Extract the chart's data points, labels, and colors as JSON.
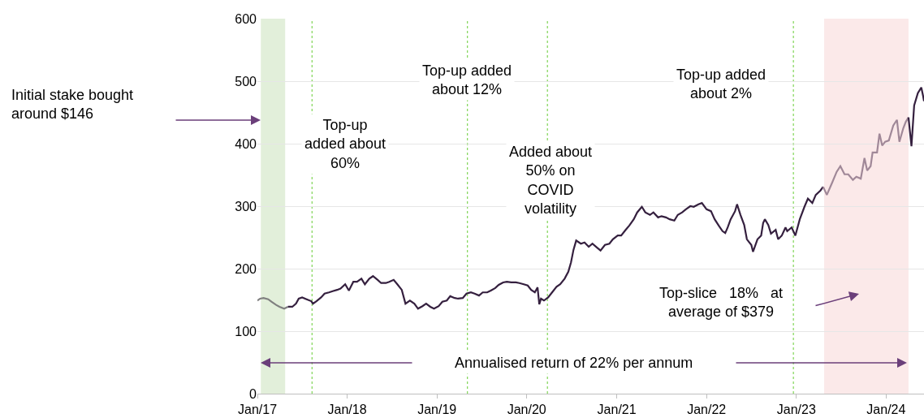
{
  "chart_data": {
    "type": "line",
    "xlim": [
      "2017-01-01",
      "2024-06-03"
    ],
    "ylim": [
      0,
      600
    ],
    "xticks": [
      {
        "value": "2017-01-01",
        "label": "Jan/17"
      },
      {
        "value": "2018-01-01",
        "label": "Jan/18"
      },
      {
        "value": "2019-01-01",
        "label": "Jan/19"
      },
      {
        "value": "2020-01-01",
        "label": "Jan/20"
      },
      {
        "value": "2021-01-01",
        "label": "Jan/21"
      },
      {
        "value": "2022-01-01",
        "label": "Jan/22"
      },
      {
        "value": "2023-01-01",
        "label": "Jan/23"
      },
      {
        "value": "2024-01-01",
        "label": "Jan/24"
      }
    ],
    "yticks": [
      0,
      100,
      200,
      300,
      400,
      500,
      600
    ],
    "grid": "y",
    "line_style": "solid",
    "marker": "none",
    "series": [
      {
        "color": "#808080",
        "x": [
          "2017-01-01",
          "2017-01-12",
          "2017-01-26",
          "2017-02-14",
          "2017-02-28",
          "2017-03-18",
          "2017-04-01",
          "2017-04-20",
          "2017-05-05"
        ],
        "values": [
          149,
          152,
          153,
          151,
          147,
          142,
          139,
          136,
          139
        ]
      },
      {
        "color": "#35203f",
        "x": [
          "2017-05-05",
          "2017-05-23",
          "2017-06-07",
          "2017-06-18",
          "2017-07-02",
          "2017-07-20",
          "2017-08-08",
          "2017-08-15",
          "2017-08-29",
          "2017-09-17",
          "2017-10-01",
          "2017-10-19",
          "2017-11-03",
          "2017-11-21",
          "2017-12-05",
          "2017-12-24",
          "2018-01-08",
          "2018-01-26",
          "2018-02-10",
          "2018-02-28",
          "2018-03-14",
          "2018-04-01",
          "2018-04-16",
          "2018-05-05",
          "2018-05-19",
          "2018-06-07",
          "2018-06-21",
          "2018-07-09",
          "2018-07-24",
          "2018-08-11",
          "2018-08-26",
          "2018-09-13",
          "2018-10-01",
          "2018-10-16",
          "2018-11-03",
          "2018-11-18",
          "2018-12-05",
          "2018-12-20",
          "2019-01-08",
          "2019-01-23",
          "2019-02-10",
          "2019-02-24",
          "2019-03-14",
          "2019-03-28",
          "2019-04-16",
          "2019-05-01",
          "2019-05-19",
          "2019-06-03",
          "2019-06-21",
          "2019-07-06",
          "2019-07-24",
          "2019-08-08",
          "2019-08-26",
          "2019-09-09",
          "2019-09-27",
          "2019-10-12",
          "2019-10-30",
          "2019-11-18",
          "2019-12-02",
          "2019-12-20",
          "2020-01-05",
          "2020-01-19",
          "2020-02-03",
          "2020-02-14",
          "2020-02-21",
          "2020-02-28",
          "2020-03-11",
          "2020-03-28",
          "2020-04-13",
          "2020-05-01",
          "2020-05-16",
          "2020-06-03",
          "2020-06-18",
          "2020-06-29",
          "2020-07-09",
          "2020-07-20",
          "2020-08-08",
          "2020-08-23",
          "2020-09-09",
          "2020-09-24",
          "2020-10-12",
          "2020-10-27",
          "2020-11-14",
          "2020-12-02",
          "2020-12-16",
          "2021-01-05",
          "2021-01-19",
          "2021-02-06",
          "2021-02-21",
          "2021-03-11",
          "2021-03-25",
          "2021-04-13",
          "2021-04-27",
          "2021-05-16",
          "2021-05-30",
          "2021-06-18",
          "2021-07-02",
          "2021-07-20",
          "2021-08-04",
          "2021-08-23",
          "2021-09-06",
          "2021-09-24",
          "2021-10-09",
          "2021-10-27",
          "2021-11-10",
          "2021-11-29",
          "2021-12-13",
          "2022-01-01",
          "2022-01-19",
          "2022-02-03",
          "2022-02-21",
          "2022-03-07",
          "2022-03-18",
          "2022-03-28",
          "2022-04-09",
          "2022-04-27",
          "2022-05-05",
          "2022-05-19",
          "2022-06-03",
          "2022-06-14",
          "2022-07-02",
          "2022-07-09",
          "2022-07-27",
          "2022-08-11",
          "2022-08-19",
          "2022-08-26",
          "2022-09-09",
          "2022-09-20",
          "2022-10-09",
          "2022-10-19",
          "2022-11-03",
          "2022-11-18",
          "2022-11-25",
          "2022-12-13",
          "2022-12-28",
          "2023-01-15",
          "2023-02-03",
          "2023-02-17",
          "2023-03-07",
          "2023-03-21",
          "2023-04-09",
          "2023-04-20"
        ],
        "values": [
          139,
          139,
          144,
          152,
          154,
          151,
          148,
          144,
          148,
          154,
          160,
          162,
          164,
          166,
          168,
          175,
          165,
          179,
          179,
          184,
          175,
          184,
          188,
          182,
          177,
          177,
          179,
          182,
          175,
          166,
          144,
          149,
          144,
          136,
          140,
          144,
          139,
          136,
          140,
          147,
          149,
          156,
          153,
          152,
          153,
          160,
          162,
          160,
          157,
          162,
          162,
          165,
          169,
          174,
          178,
          179,
          178,
          178,
          177,
          175,
          173,
          166,
          162,
          170,
          143,
          152,
          149,
          154,
          162,
          171,
          175,
          184,
          195,
          210,
          230,
          245,
          240,
          242,
          235,
          240,
          234,
          229,
          238,
          240,
          247,
          253,
          253,
          262,
          269,
          279,
          290,
          299,
          290,
          286,
          290,
          282,
          284,
          282,
          279,
          277,
          286,
          290,
          295,
          300,
          299,
          303,
          305,
          295,
          292,
          279,
          268,
          260,
          257,
          266,
          279,
          292,
          303,
          286,
          270,
          247,
          238,
          227,
          247,
          253,
          273,
          279,
          270,
          256,
          262,
          247,
          253,
          266,
          260,
          266,
          253,
          279,
          299,
          312,
          305,
          318,
          325,
          331
        ]
      },
      {
        "color": "#a08898",
        "x": [
          "2023-04-20",
          "2023-05-05",
          "2023-05-27",
          "2023-06-14",
          "2023-06-29",
          "2023-07-16",
          "2023-07-31",
          "2023-08-19",
          "2023-09-02",
          "2023-09-20",
          "2023-10-05",
          "2023-10-16",
          "2023-10-30",
          "2023-11-07",
          "2023-11-25",
          "2023-12-05",
          "2023-12-16",
          "2023-12-28",
          "2024-01-12",
          "2024-01-30",
          "2024-02-14",
          "2024-02-24",
          "2024-03-11",
          "2024-03-21",
          "2024-04-01"
        ],
        "values": [
          331,
          318,
          338,
          355,
          364,
          351,
          351,
          342,
          347,
          344,
          377,
          357,
          364,
          386,
          386,
          416,
          397,
          403,
          405,
          429,
          438,
          403,
          425,
          435,
          442
        ]
      },
      {
        "color": "#35203f",
        "x": [
          "2024-04-01",
          "2024-04-13",
          "2024-04-24",
          "2024-05-09",
          "2024-05-23",
          "2024-05-30",
          "2024-06-03"
        ],
        "values": [
          442,
          396,
          461,
          481,
          490,
          477,
          468
        ]
      }
    ],
    "bands": [
      {
        "axis": "x",
        "from": "2017-01-15",
        "to": "2017-04-24",
        "color": "#e2efda"
      },
      {
        "axis": "x",
        "from": "2023-04-24",
        "to": "2024-04-01",
        "color": "#fbe9e9"
      }
    ],
    "ref_lines": [
      {
        "axis": "x",
        "value": "2017-08-11",
        "color": "#66cc33",
        "line_style": "dotted"
      },
      {
        "axis": "x",
        "value": "2019-05-05",
        "color": "#66cc33",
        "line_style": "dotted"
      },
      {
        "axis": "x",
        "value": "2020-03-25",
        "color": "#66cc33",
        "line_style": "dotted"
      },
      {
        "axis": "x",
        "value": "2022-12-20",
        "color": "#66cc33",
        "line_style": "dotted"
      }
    ],
    "annotations": [
      "Initial stake bought\naround $146",
      "Top-up\nadded about\n60%",
      "Top-up added\nabout 12%",
      "Added about\n50% on\nCOVID\nvolatility",
      "Top-up added\nabout 2%",
      "Top-slice   18%   at\naverage of $379",
      "Annualised return of 22% per annum"
    ]
  }
}
